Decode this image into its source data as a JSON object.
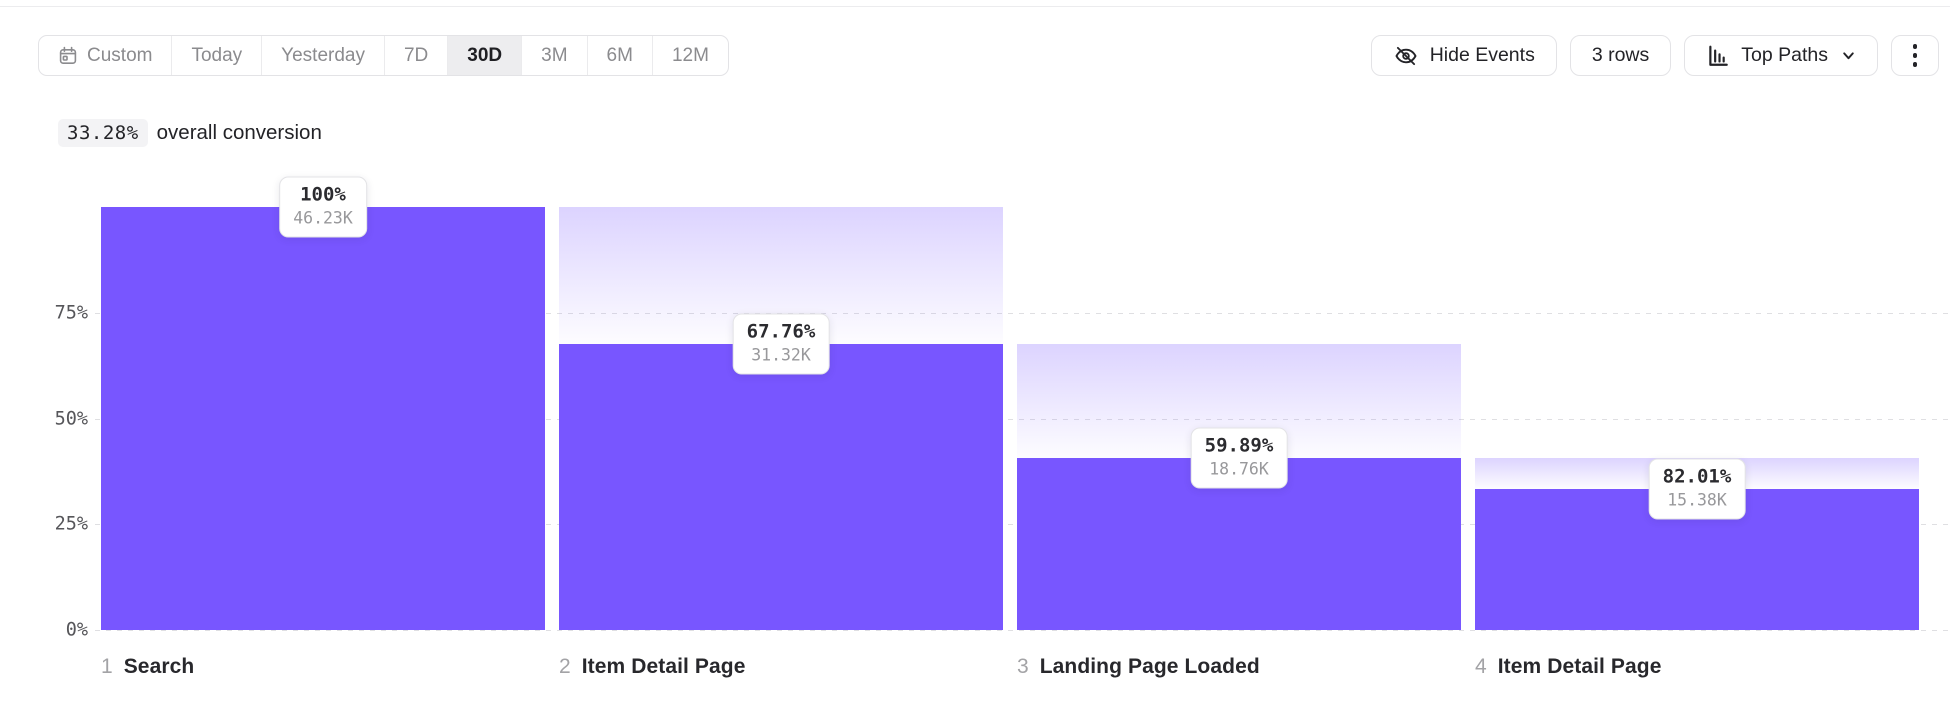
{
  "toolbar": {
    "date_ranges": [
      {
        "label": "Custom",
        "selected": false,
        "icon": "calendar-icon"
      },
      {
        "label": "Today",
        "selected": false
      },
      {
        "label": "Yesterday",
        "selected": false
      },
      {
        "label": "7D",
        "selected": false
      },
      {
        "label": "30D",
        "selected": true
      },
      {
        "label": "3M",
        "selected": false
      },
      {
        "label": "6M",
        "selected": false
      },
      {
        "label": "12M",
        "selected": false
      }
    ],
    "hide_events_label": "Hide Events",
    "rows_label": "3 rows",
    "top_paths_label": "Top Paths",
    "icons": {
      "hide_events": "eye-slash-icon",
      "top_paths": "histogram-icon",
      "more": "kebab-menu-icon"
    }
  },
  "summary": {
    "value": "33.28%",
    "text": "overall conversion"
  },
  "chart_data": {
    "type": "bar",
    "subtype": "funnel",
    "ylim": [
      0,
      100
    ],
    "yticks": [
      {
        "label": "75%",
        "pct": 75
      },
      {
        "label": "50%",
        "pct": 50
      },
      {
        "label": "25%",
        "pct": 25
      },
      {
        "label": "0%",
        "pct": 0
      }
    ],
    "grid": "dashed-horizontal",
    "steps": [
      {
        "index": "1",
        "label": "Search",
        "conversion_pct_label": "100%",
        "count_label": "46.23K",
        "overall_pct": 100,
        "prev_overall_pct": 100
      },
      {
        "index": "2",
        "label": "Item Detail Page",
        "conversion_pct_label": "67.76%",
        "count_label": "31.32K",
        "overall_pct": 67.76,
        "prev_overall_pct": 100
      },
      {
        "index": "3",
        "label": "Landing Page Loaded",
        "conversion_pct_label": "59.89%",
        "count_label": "18.76K",
        "overall_pct": 40.58,
        "prev_overall_pct": 67.76
      },
      {
        "index": "4",
        "label": "Item Detail Page",
        "conversion_pct_label": "82.01%",
        "count_label": "15.38K",
        "overall_pct": 33.27,
        "prev_overall_pct": 40.58
      }
    ],
    "colors": {
      "bar": "#7856ff",
      "dropoff_gradient_top": "rgba(120,86,255,0.26)",
      "grid": "#dfdfe2"
    }
  }
}
